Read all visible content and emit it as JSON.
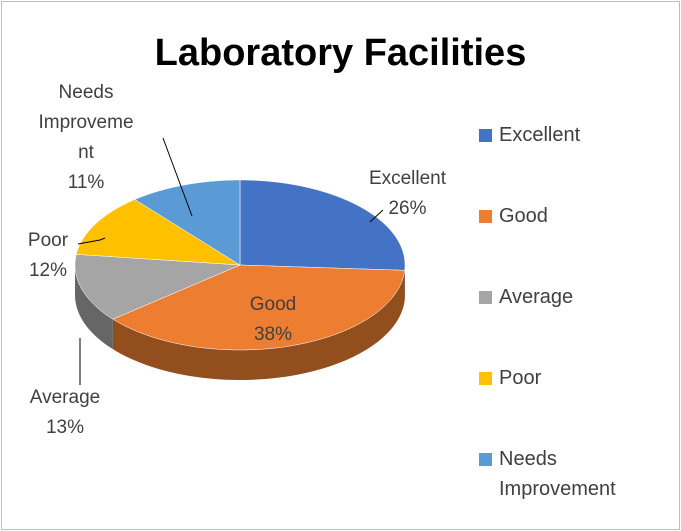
{
  "chart_data": {
    "type": "pie3d",
    "title": "Laboratory Facilities",
    "categories": [
      "Excellent",
      "Good",
      "Average",
      "Poor",
      "Needs Improvement"
    ],
    "values": [
      26,
      38,
      13,
      12,
      11
    ],
    "value_labels": [
      "26%",
      "38%",
      "13%",
      "12%",
      "11%"
    ],
    "colors": [
      "#4472c4",
      "#ed7d31",
      "#a5a5a5",
      "#ffc000",
      "#5b9bd5"
    ],
    "legend": "right"
  }
}
